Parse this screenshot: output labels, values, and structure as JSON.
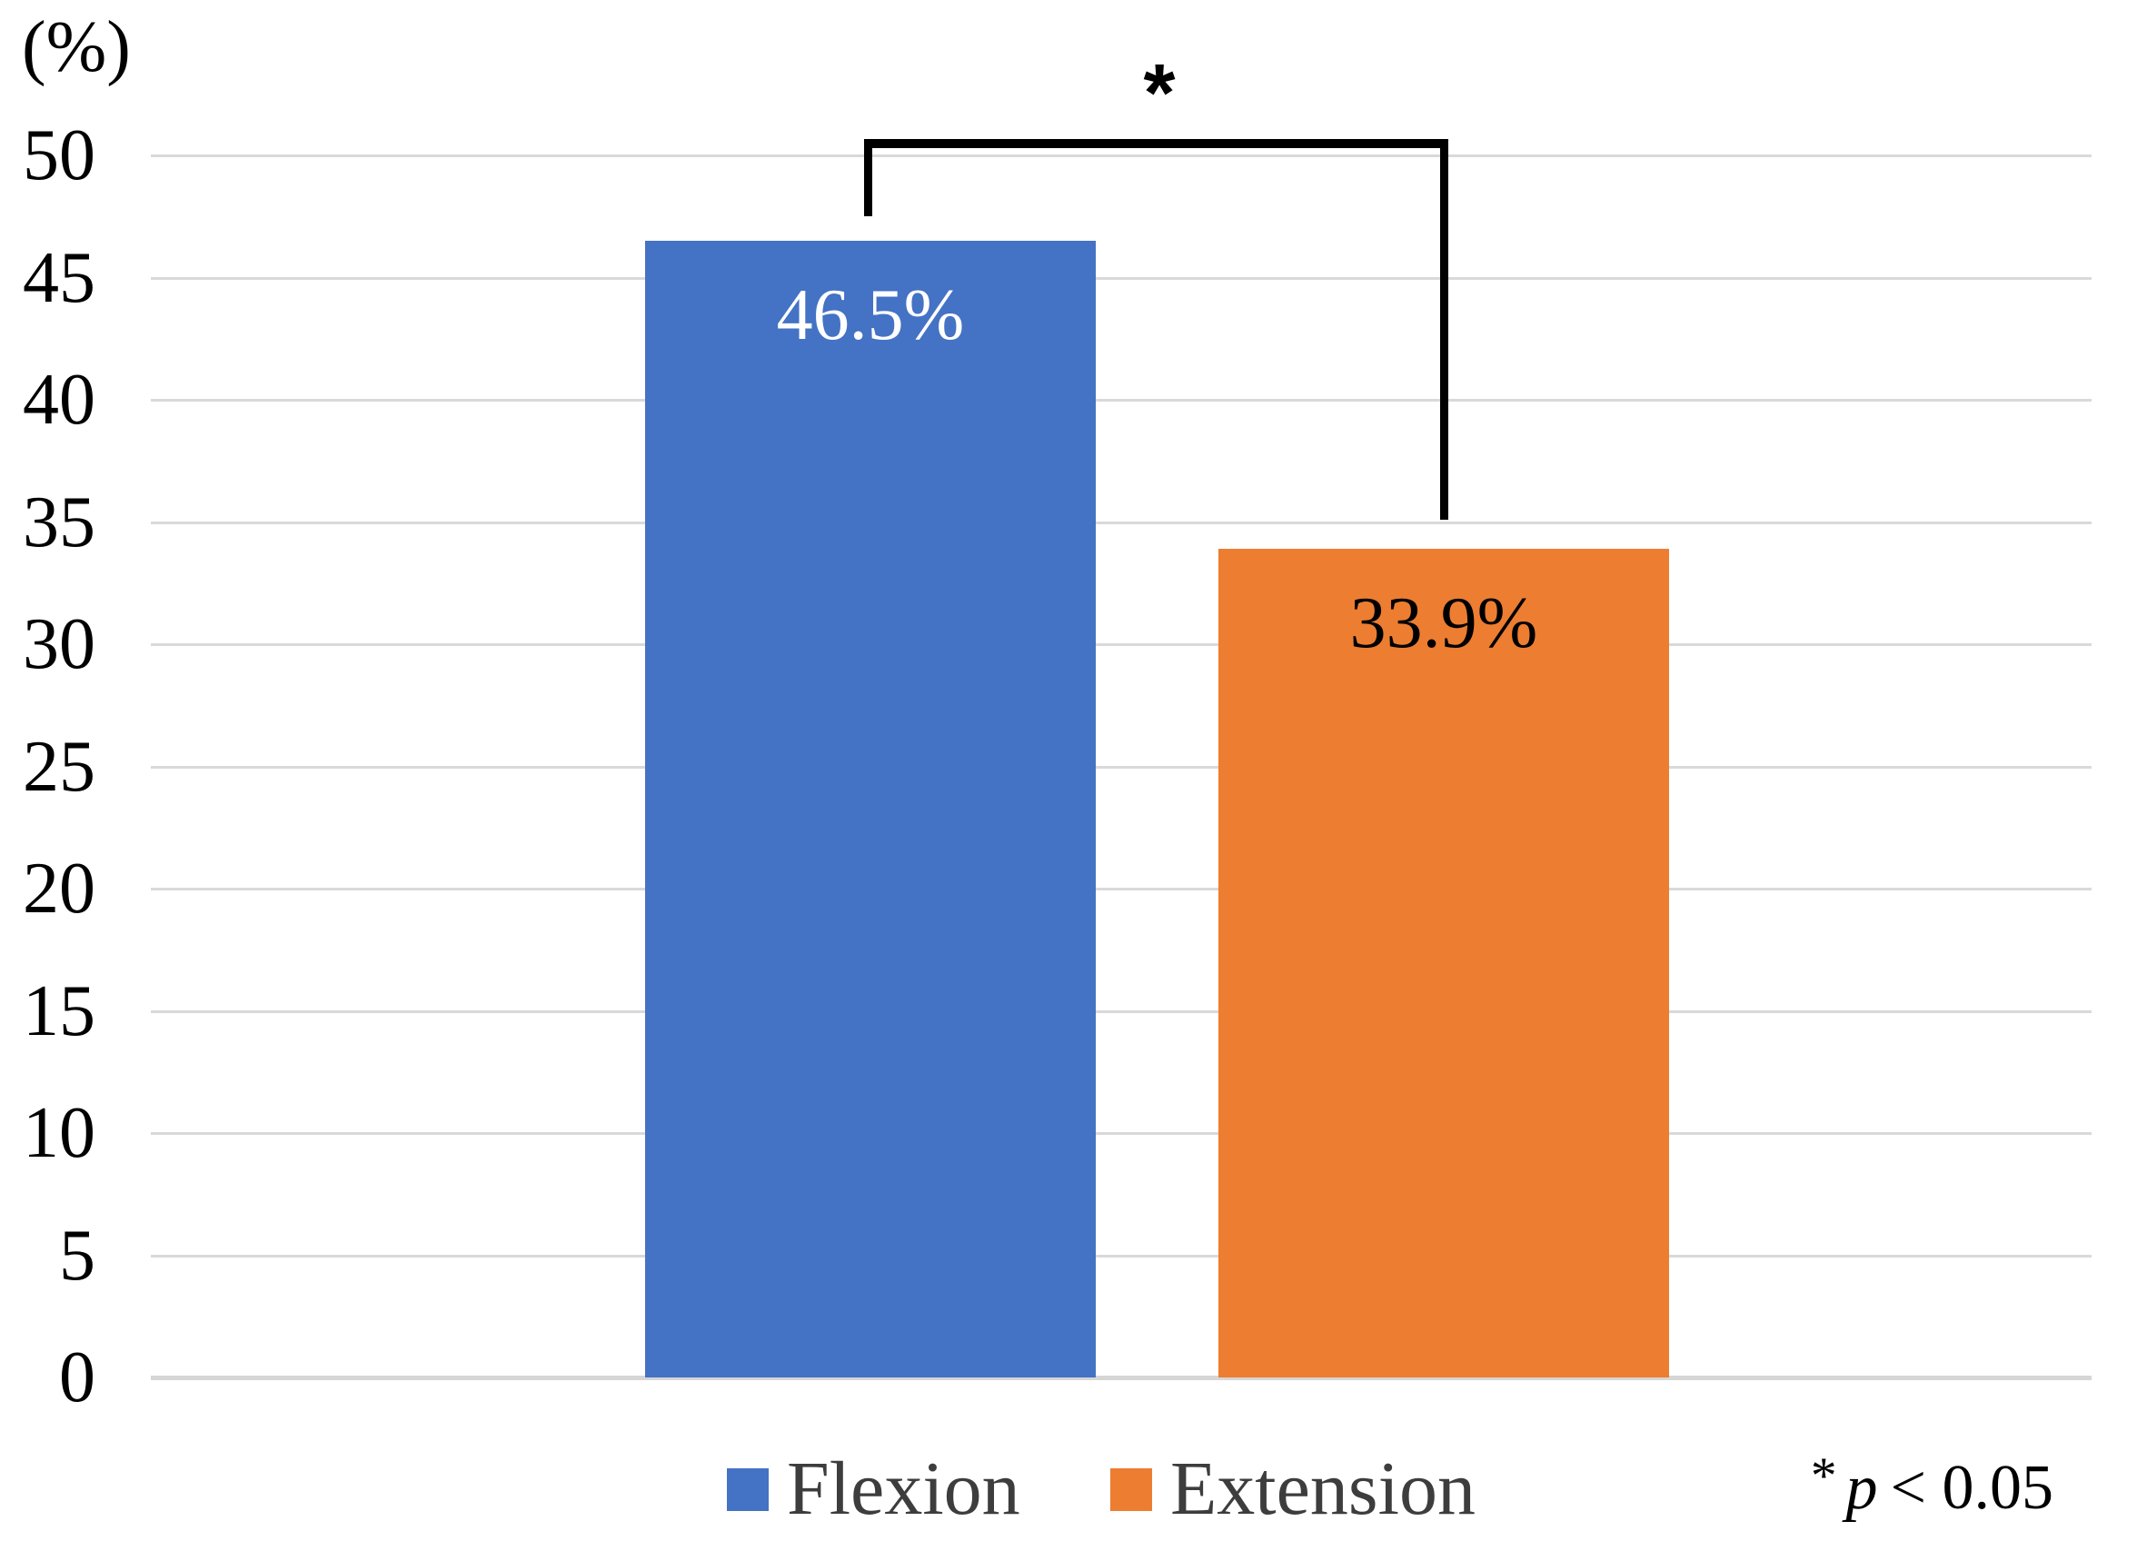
{
  "chart_data": {
    "type": "bar",
    "title": "",
    "unit_label": "(%)",
    "categories": [
      "Flexion",
      "Extension"
    ],
    "series": [
      {
        "name": "Flexion",
        "value": 46.5,
        "label": "46.5%",
        "color": "#4472C4",
        "label_color": "#FFFFFF"
      },
      {
        "name": "Extension",
        "value": 33.9,
        "label": "33.9%",
        "color": "#ED7D31",
        "label_color": "#000000"
      }
    ],
    "ylim": [
      0,
      50
    ],
    "yticks": [
      0,
      5,
      10,
      15,
      20,
      25,
      30,
      35,
      40,
      45,
      50
    ],
    "grid": true,
    "legend_position": "bottom",
    "gridline_color": "#D9D9D9",
    "significance": {
      "bracket_marker": "*",
      "compares": [
        "Flexion",
        "Extension"
      ],
      "note": {
        "star": "*",
        "variable": "p",
        "relation": "< 0.05"
      }
    }
  }
}
